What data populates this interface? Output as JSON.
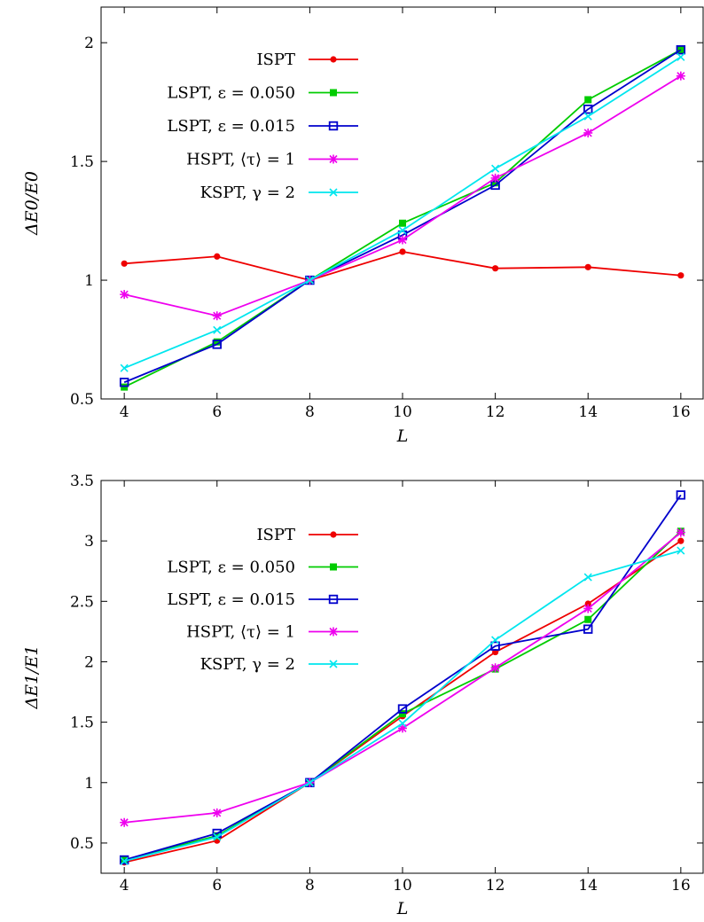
{
  "chart_data": [
    {
      "type": "line",
      "title": "",
      "xlabel": "L",
      "ylabel": "ΔE0/E0",
      "x": [
        4,
        6,
        8,
        10,
        12,
        14,
        16
      ],
      "xlim": [
        3.5,
        16.5
      ],
      "ylim": [
        0.5,
        2.15
      ],
      "xticks": [
        4,
        6,
        8,
        10,
        12,
        14,
        16
      ],
      "yticks": [
        0.5,
        1,
        1.5,
        2
      ],
      "ytick_labels": [
        "0.5",
        "1",
        "1.5",
        "2"
      ],
      "grid": false,
      "legend_position": "top-left",
      "series": [
        {
          "name": "ISPT",
          "color": "#ee0000",
          "marker": "filled-circle",
          "values": [
            1.07,
            1.1,
            1.0,
            1.12,
            1.05,
            1.055,
            1.02
          ]
        },
        {
          "name": "LSPT, ε = 0.050",
          "color": "#00cc00",
          "marker": "filled-square",
          "values": [
            0.55,
            0.74,
            1.0,
            1.24,
            1.41,
            1.76,
            1.97
          ]
        },
        {
          "name": "LSPT, ε = 0.015",
          "color": "#0000cc",
          "marker": "open-square",
          "values": [
            0.57,
            0.73,
            1.0,
            1.19,
            1.4,
            1.72,
            1.97
          ]
        },
        {
          "name": "HSPT, ⟨τ⟩ = 1",
          "color": "#ee00ee",
          "marker": "star",
          "values": [
            0.94,
            0.85,
            1.0,
            1.17,
            1.43,
            1.62,
            1.86
          ]
        },
        {
          "name": "KSPT, γ = 2",
          "color": "#00e6ee",
          "marker": "cross",
          "values": [
            0.63,
            0.79,
            1.0,
            1.21,
            1.47,
            1.69,
            1.94
          ]
        }
      ]
    },
    {
      "type": "line",
      "title": "",
      "xlabel": "L",
      "ylabel": "ΔE1/E1",
      "x": [
        4,
        6,
        8,
        10,
        12,
        14,
        16
      ],
      "xlim": [
        3.5,
        16.5
      ],
      "ylim": [
        0.25,
        3.5
      ],
      "xticks": [
        4,
        6,
        8,
        10,
        12,
        14,
        16
      ],
      "yticks": [
        0.5,
        1,
        1.5,
        2,
        2.5,
        3,
        3.5
      ],
      "ytick_labels": [
        "0.5",
        "1",
        "1.5",
        "2",
        "2.5",
        "3",
        "3.5"
      ],
      "grid": false,
      "legend_position": "top-left",
      "series": [
        {
          "name": "ISPT",
          "color": "#ee0000",
          "marker": "filled-circle",
          "values": [
            0.34,
            0.52,
            1.0,
            1.55,
            2.08,
            2.48,
            3.0
          ]
        },
        {
          "name": "LSPT, ε = 0.050",
          "color": "#00cc00",
          "marker": "filled-square",
          "values": [
            0.36,
            0.56,
            1.0,
            1.57,
            1.94,
            2.35,
            3.08
          ]
        },
        {
          "name": "LSPT, ε = 0.015",
          "color": "#0000cc",
          "marker": "open-square",
          "values": [
            0.36,
            0.58,
            1.0,
            1.61,
            2.13,
            2.27,
            3.38
          ]
        },
        {
          "name": "HSPT, ⟨τ⟩ = 1",
          "color": "#ee00ee",
          "marker": "star",
          "values": [
            0.67,
            0.75,
            1.0,
            1.45,
            1.95,
            2.44,
            3.07
          ]
        },
        {
          "name": "KSPT, γ = 2",
          "color": "#00e6ee",
          "marker": "cross",
          "values": [
            0.35,
            0.55,
            1.0,
            1.49,
            2.18,
            2.7,
            2.92
          ]
        }
      ]
    }
  ]
}
